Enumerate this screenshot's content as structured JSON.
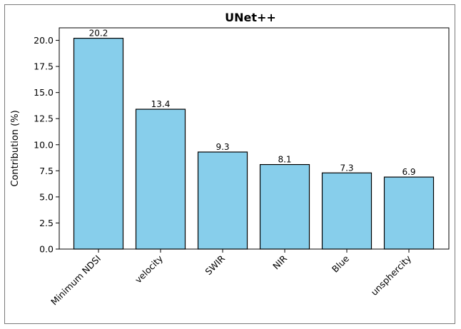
{
  "chart_data": {
    "type": "bar",
    "title": "UNet++",
    "xlabel": "",
    "ylabel": "Contribution (%)",
    "categories": [
      "Minimum NDSI",
      "velocity",
      "SWIR",
      "NIR",
      "Blue",
      "unsphercity"
    ],
    "values": [
      20.2,
      13.4,
      9.3,
      8.1,
      7.3,
      6.9
    ],
    "data_labels": [
      "20.2",
      "13.4",
      "9.3",
      "8.1",
      "7.3",
      "6.9"
    ],
    "ylim": [
      0,
      21.2
    ],
    "yticks": [
      0.0,
      2.5,
      5.0,
      7.5,
      10.0,
      12.5,
      15.0,
      17.5,
      20.0
    ],
    "ytick_labels": [
      "0.0",
      "2.5",
      "5.0",
      "7.5",
      "10.0",
      "12.5",
      "15.0",
      "17.5",
      "20.0"
    ],
    "grid": false,
    "legend": "none",
    "colors": {
      "bar_fill": "#87ceeb",
      "bar_edge": "#000000"
    }
  }
}
